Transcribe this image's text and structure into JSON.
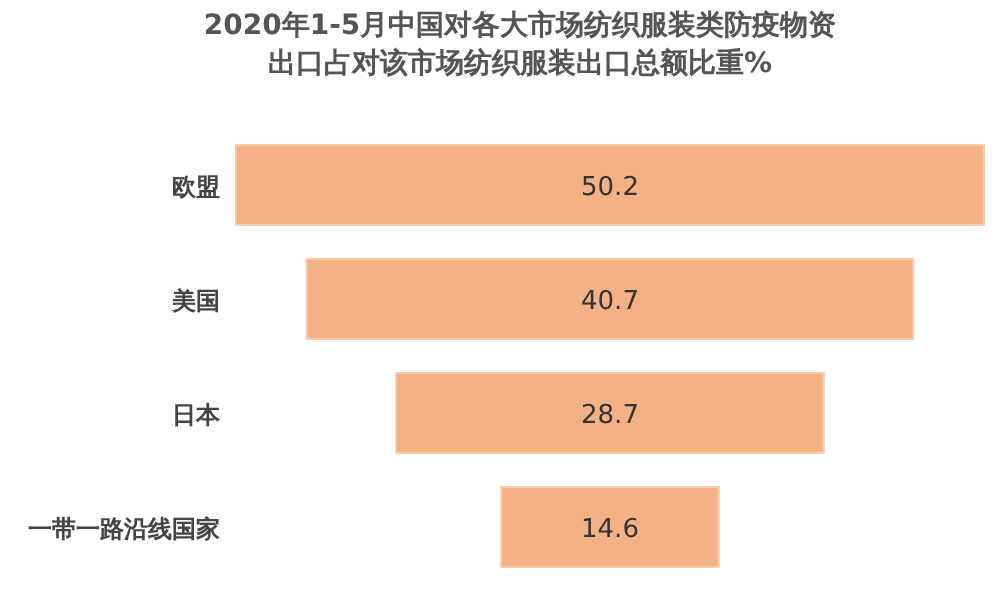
{
  "chart_data": {
    "type": "other",
    "title": "2020年1-5月中国对各大市场纺织服装类防疫物资出口占对该市场纺织服装出口总额比重%",
    "categories": [
      "欧盟",
      "美国",
      "日本",
      "一带一路沿线国家"
    ],
    "values": [
      50.2,
      40.7,
      28.7,
      14.6
    ],
    "color": "#f4b183",
    "data_labels": true
  }
}
